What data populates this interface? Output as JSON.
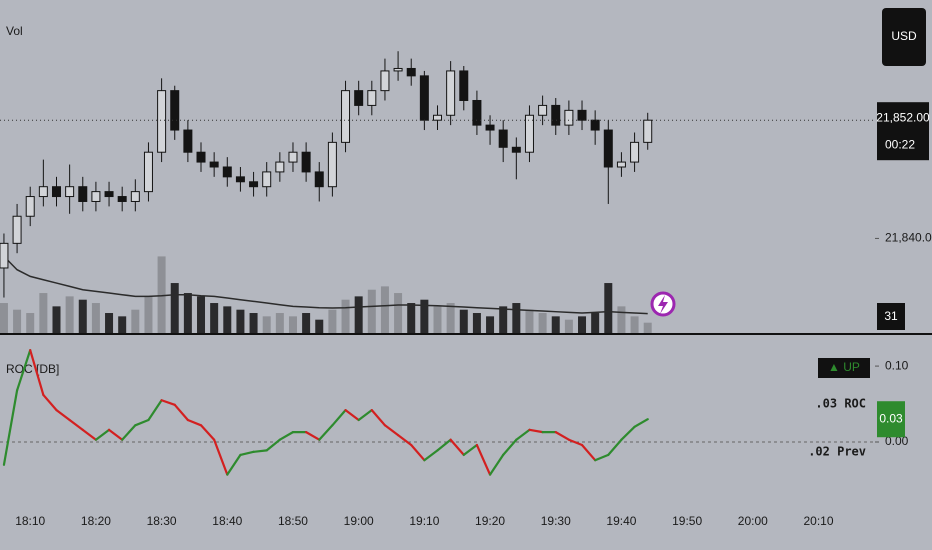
{
  "chart_data": [
    {
      "type": "candlestick",
      "x": [
        1086,
        1088,
        1090,
        1092,
        1094,
        1096,
        1098,
        1100,
        1102,
        1104,
        1106,
        1108,
        1110,
        1112,
        1114,
        1116,
        1118,
        1120,
        1122,
        1124,
        1126,
        1128,
        1130,
        1132,
        1134,
        1136,
        1138,
        1140,
        1142,
        1144,
        1146,
        1148,
        1150,
        1152,
        1154,
        1156,
        1158,
        1160,
        1162,
        1164,
        1166,
        1168,
        1170,
        1172,
        1174,
        1176,
        1178,
        1180,
        1182,
        1184
      ],
      "open": [
        21837,
        21839.5,
        21842.25,
        21844.25,
        21845.25,
        21844.25,
        21845.25,
        21843.75,
        21844.75,
        21844.25,
        21843.75,
        21844.75,
        21848.75,
        21855,
        21851,
        21848.75,
        21847.75,
        21847.25,
        21846.25,
        21845.75,
        21845.25,
        21846.75,
        21847.75,
        21848.75,
        21846.75,
        21845.25,
        21849.75,
        21855,
        21853.5,
        21855,
        21857,
        21857.25,
        21856.5,
        21852,
        21852.5,
        21857,
        21854,
        21851.5,
        21851,
        21849.25,
        21848.75,
        21852.5,
        21853.5,
        21851.5,
        21853,
        21852,
        21851,
        21847.25,
        21847.75,
        21849.75
      ],
      "high": [
        21840.5,
        21843.5,
        21845.25,
        21848,
        21846.25,
        21847.5,
        21846.25,
        21845.75,
        21845.75,
        21845.25,
        21846,
        21849.75,
        21856.25,
        21855.5,
        21852,
        21849.75,
        21848.75,
        21848.25,
        21847.25,
        21846.75,
        21847.75,
        21848.75,
        21849.75,
        21849.75,
        21847.75,
        21850.75,
        21856,
        21856,
        21856,
        21858.25,
        21859,
        21858.25,
        21857,
        21853.5,
        21858,
        21857.5,
        21855,
        21852.5,
        21852,
        21850.25,
        21853.5,
        21854.5,
        21854.25,
        21854,
        21854,
        21853,
        21852,
        21848.75,
        21850.75,
        21852.75
      ],
      "low": [
        21834,
        21838.5,
        21841.25,
        21843.25,
        21843.25,
        21842.5,
        21842.75,
        21842.75,
        21843.25,
        21842.75,
        21842.75,
        21843.75,
        21847.75,
        21850,
        21847.75,
        21846.75,
        21846.25,
        21845.25,
        21844.75,
        21844.25,
        21844.25,
        21845.75,
        21846.75,
        21845.75,
        21843.75,
        21844.25,
        21848.75,
        21852.5,
        21852.5,
        21854,
        21856,
        21855.5,
        21851,
        21851,
        21851.5,
        21853,
        21850.5,
        21849.5,
        21847.75,
        21846,
        21847.75,
        21851.5,
        21850.5,
        21850.5,
        21851,
        21849.5,
        21843.5,
        21846.25,
        21846.75,
        21849
      ],
      "close": [
        21839.5,
        21842.25,
        21844.25,
        21845.25,
        21844.25,
        21845.25,
        21843.75,
        21844.75,
        21844.25,
        21843.75,
        21844.75,
        21848.75,
        21855,
        21851,
        21848.75,
        21847.75,
        21847.25,
        21846.25,
        21845.75,
        21845.25,
        21846.75,
        21847.75,
        21848.75,
        21846.75,
        21845.25,
        21849.75,
        21855,
        21853.5,
        21855,
        21857,
        21857.25,
        21856.5,
        21852,
        21852.5,
        21857,
        21854,
        21851.5,
        21851,
        21849.25,
        21848.75,
        21852.5,
        21853.5,
        21851.5,
        21853,
        21852,
        21851,
        21847.25,
        21847.75,
        21849.75,
        21852
      ],
      "up_color": "#d2d4d8",
      "down_color": "#141414",
      "outline_color": "#141414",
      "xlim": [
        1085.4,
        1218.6
      ],
      "xticks": [
        {
          "value": 1090,
          "label": "18:10"
        },
        {
          "value": 1100,
          "label": "18:20"
        },
        {
          "value": 1110,
          "label": "18:30"
        },
        {
          "value": 1120,
          "label": "18:40"
        },
        {
          "value": 1130,
          "label": "18:50"
        },
        {
          "value": 1140,
          "label": "19:00"
        },
        {
          "value": 1150,
          "label": "19:10"
        },
        {
          "value": 1160,
          "label": "19:20"
        },
        {
          "value": 1170,
          "label": "19:30"
        },
        {
          "value": 1180,
          "label": "19:40"
        },
        {
          "value": 1190,
          "label": "19:50"
        },
        {
          "value": 1200,
          "label": "20:00"
        },
        {
          "value": 1210,
          "label": "20:10"
        }
      ],
      "ylim": [
        21830.4,
        21864.2
      ],
      "yticks": [
        {
          "value": 21840,
          "label": "21,840.00"
        }
      ],
      "last_price": 21852,
      "last_price_label": "21,852.00",
      "countdown": "00:22",
      "currency": "USD"
    },
    {
      "type": "bar",
      "title": "Vol",
      "values": [
        90,
        70,
        60,
        120,
        80,
        110,
        100,
        90,
        60,
        50,
        70,
        110,
        230,
        150,
        120,
        110,
        90,
        80,
        70,
        60,
        50,
        60,
        50,
        60,
        40,
        70,
        100,
        110,
        130,
        140,
        120,
        90,
        100,
        80,
        90,
        70,
        60,
        50,
        80,
        90,
        70,
        60,
        50,
        40,
        50,
        60,
        150,
        80,
        50,
        31
      ],
      "ma": [
        230,
        190,
        170,
        160,
        150,
        140,
        130,
        125,
        120,
        115,
        110,
        110,
        112,
        115,
        115,
        112,
        110,
        105,
        100,
        95,
        90,
        85,
        80,
        78,
        76,
        75,
        76,
        78,
        80,
        82,
        84,
        84,
        83,
        82,
        80,
        78,
        76,
        74,
        72,
        70,
        68,
        66,
        64,
        62,
        60,
        62,
        64,
        62,
        60,
        58
      ],
      "up_color": "#8e9096",
      "down_color": "#2a2a2c",
      "ma_color": "#2b2b2b",
      "ylim": [
        0,
        1000
      ]
    },
    {
      "type": "line",
      "title": "ROC [DB]",
      "values": [
        -0.03,
        0.068,
        0.121,
        0.062,
        0.042,
        0.029,
        0.016,
        0.003,
        0.016,
        0.003,
        0.022,
        0.029,
        0.055,
        0.049,
        0.029,
        0.022,
        0.003,
        -0.043,
        -0.017,
        -0.013,
        -0.011,
        0.003,
        0.013,
        0.013,
        0.003,
        0.022,
        0.042,
        0.029,
        0.042,
        0.022,
        0.009,
        -0.004,
        -0.024,
        -0.011,
        0.003,
        -0.017,
        -0.004,
        -0.043,
        -0.017,
        0.003,
        0.016,
        0.013,
        0.013,
        0.003,
        -0.004,
        -0.024,
        -0.017,
        0.003,
        0.02,
        0.03
      ],
      "up_color": "#2e8b2e",
      "down_color": "#d32020",
      "ylim": [
        -0.083,
        0.137
      ],
      "yticks": [
        {
          "value": 0.1,
          "label": "0.10"
        },
        {
          "value": 0,
          "label": "0.00"
        }
      ],
      "zero_line": true,
      "trend_label": "▲ UP",
      "roc_label": ".03 ROC",
      "prev_label": ".02 Prev",
      "last_value_label": "0.03"
    }
  ]
}
